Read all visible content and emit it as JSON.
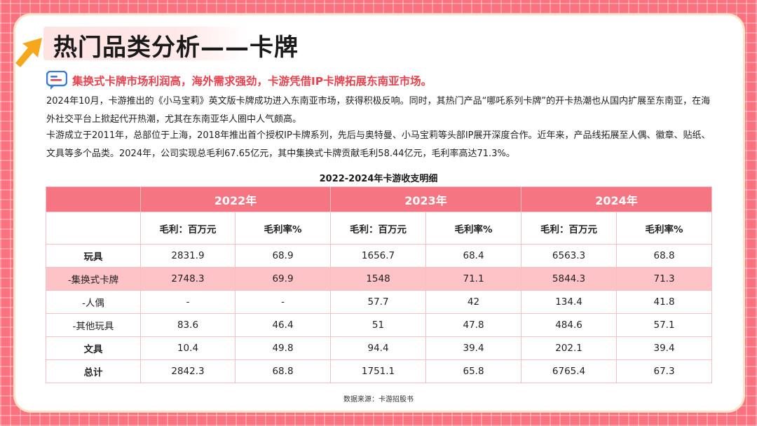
{
  "page": {
    "title": "热门品类分析——卡牌",
    "headline": "集换式卡牌市场利润高，海外需求强劲，卡游凭借IP卡牌拓展东南亚市场。",
    "paragraphs": [
      "2024年10月，卡游推出的《小马宝莉》英文版卡牌成功进入东南亚市场，获得积极反响。同时，其热门产品“哪吒系列卡牌”的开卡热潮也从国内扩展至东南亚，在海外社交平台上掀起代开热潮，尤其在东南亚华人圈中人气颇高。",
      "卡游成立于2011年，总部位于上海，2018年推出首个授权IP卡牌系列，先后与奥特曼、小马宝莉等头部IP展开深度合作。近年来，产品线拓展至人偶、徽章、贴纸、文具等多个品类。2024年，公司实现总毛利67.65亿元，其中集换式卡牌贡献毛利58.44亿元，毛利率高达71.3%。"
    ],
    "source": "数据来源：卡游招股书"
  },
  "table": {
    "title": "2022-2024年卡游收支明细",
    "years": [
      "2022年",
      "2023年",
      "2024年"
    ],
    "sub_headers": [
      "毛利：百万元",
      "毛利率%"
    ],
    "rows": [
      {
        "label": "玩具",
        "values": [
          "2831.9",
          "68.9",
          "1656.7",
          "68.4",
          "6563.3",
          "68.8"
        ]
      },
      {
        "label": "-集换式卡牌",
        "values": [
          "2748.3",
          "69.9",
          "1548",
          "71.1",
          "5844.3",
          "71.3"
        ]
      },
      {
        "label": "-人偶",
        "values": [
          "-",
          "-",
          "57.7",
          "42",
          "134.4",
          "41.8"
        ]
      },
      {
        "label": "-其他玩具",
        "values": [
          "83.6",
          "46.4",
          "51",
          "47.8",
          "484.6",
          "57.1"
        ]
      },
      {
        "label": "文具",
        "values": [
          "10.4",
          "49.8",
          "94.4",
          "39.4",
          "202.1",
          "39.4"
        ]
      },
      {
        "label": "总计",
        "values": [
          "2842.3",
          "68.8",
          "1751.1",
          "65.8",
          "6765.4",
          "67.3"
        ]
      }
    ]
  },
  "colors": {
    "background": "#f9727f",
    "header_fill": "#f57583",
    "highlight_row": "#fdc3c7",
    "headline_red": "#e8404d",
    "arrow_orange": "#f6a81c"
  },
  "icons": [
    "arrow-icon",
    "chat-bubble-icon"
  ]
}
